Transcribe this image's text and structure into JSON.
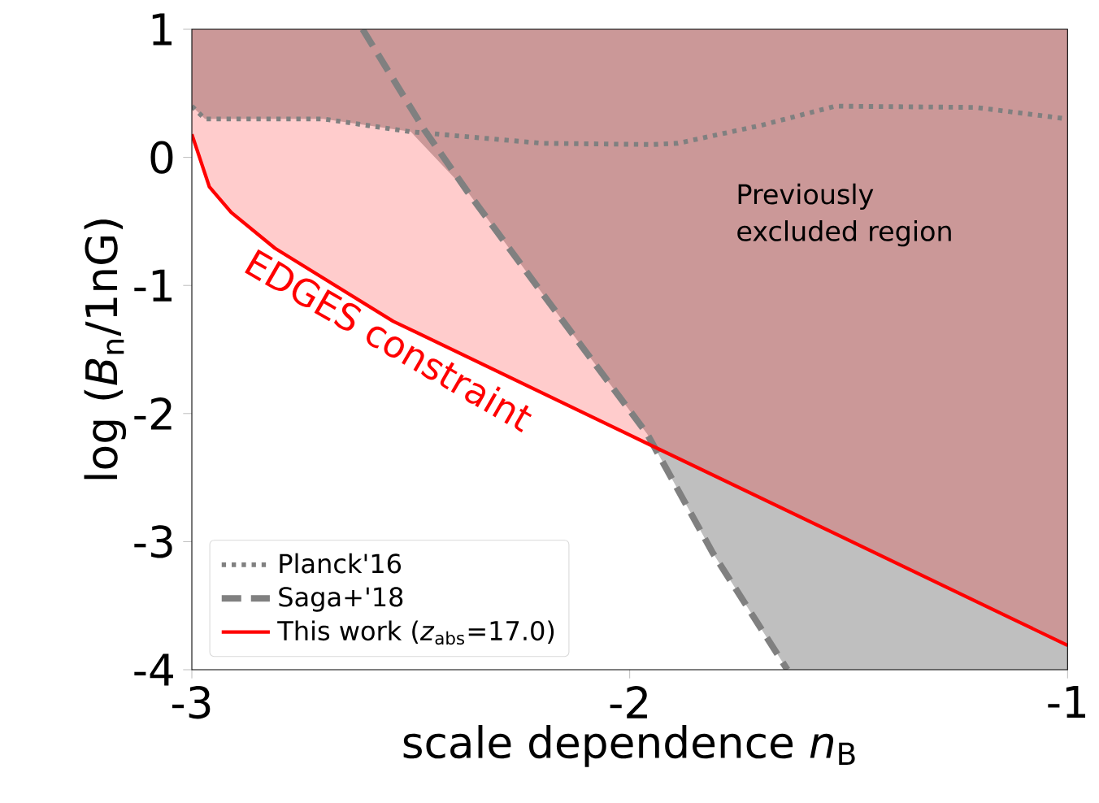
{
  "chart_data": {
    "type": "line",
    "xlabel": "scale dependence *n*$_{B}$",
    "ylabel": "log (*B*$_{n}$/1nG)",
    "xlim": [
      -3,
      -1
    ],
    "ylim": [
      -4,
      1
    ],
    "xticks": [
      -3,
      -2,
      -1
    ],
    "yticks": [
      -4,
      -3,
      -2,
      -1,
      0,
      1
    ],
    "legend": "bottom left",
    "grid": false,
    "series": [
      {
        "type": "area",
        "color": "#bfbfbf",
        "x": [
          -3.0,
          -3.0,
          -2.97,
          -2.7,
          -2.5,
          -2.37,
          -2.2,
          -1.96,
          -1.81,
          -1.64,
          -1.0,
          -1.0
        ],
        "values": [
          1,
          0.4,
          0.3,
          0.3,
          0.2,
          -0.27,
          -1.06,
          -2.16,
          -3.09,
          -4.0,
          -4.0,
          1
        ]
      },
      {
        "name": "Planck'16",
        "color": "#808080",
        "line_style": "dotted",
        "x": [
          -3.0,
          -2.97,
          -2.7,
          -2.5,
          -2.2,
          -1.95,
          -1.89,
          -1.7,
          -1.53,
          -1.21,
          -1.0
        ],
        "values": [
          0.4,
          0.3,
          0.3,
          0.2,
          0.11,
          0.1,
          0.11,
          0.25,
          0.4,
          0.39,
          0.3
        ]
      },
      {
        "name": "Saga+'18",
        "color": "#808080",
        "line_style": "dashed",
        "x": [
          -2.61,
          -2.47,
          -2.37,
          -2.2,
          -1.96,
          -1.81,
          -1.64
        ],
        "values": [
          1.0,
          0.22,
          -0.27,
          -1.06,
          -2.16,
          -3.09,
          -4.0
        ]
      },
      {
        "name": "This work (*z*$_{abs}$=17.0)",
        "color": "#ff0000",
        "line_style": "solid",
        "x": [
          -3.0,
          -2.96,
          -2.91,
          -2.81,
          -2.54,
          -1.95,
          -1.0
        ],
        "values": [
          0.18,
          -0.23,
          -0.43,
          -0.71,
          -1.28,
          -2.25,
          -3.81
        ],
        "lower": [
          0.18,
          -0.23,
          -0.43,
          -0.71,
          -1.28,
          -2.25,
          -3.81
        ],
        "upper": [
          1,
          1,
          1,
          1,
          1,
          1,
          1
        ]
      }
    ],
    "annotations": [
      "EDGES constraint",
      "Previously excluded region"
    ]
  }
}
